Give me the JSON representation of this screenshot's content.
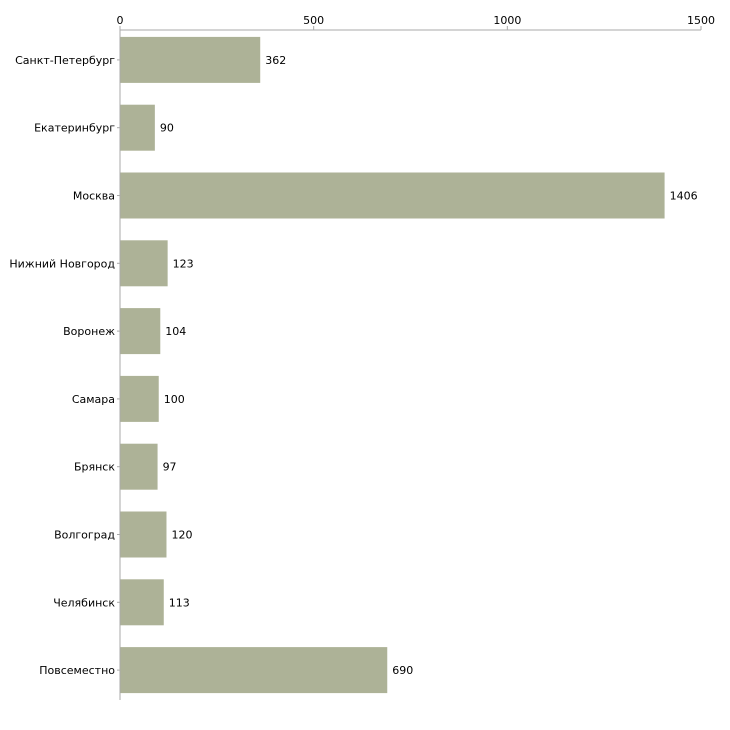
{
  "chart_data": {
    "type": "bar",
    "orientation": "horizontal",
    "title": "",
    "xlabel": "",
    "ylabel": "",
    "categories": [
      "Санкт-Петербург",
      "Екатеринбург",
      "Москва",
      "Нижний Новгород",
      "Воронеж",
      "Самара",
      "Брянск",
      "Волгоград",
      "Челябинск",
      "Повсеместно"
    ],
    "values": [
      362,
      90,
      1406,
      123,
      104,
      100,
      97,
      120,
      113,
      690
    ],
    "xlim": [
      0,
      1500
    ],
    "xticks": [
      0,
      500,
      1000,
      1500
    ],
    "xtick_labels": [
      "0",
      "500",
      "1000",
      "1500"
    ],
    "axis_position": "top",
    "grid": false,
    "legend": "none",
    "bar_color": "#adb297",
    "axis_color": "#aaaaaa"
  }
}
